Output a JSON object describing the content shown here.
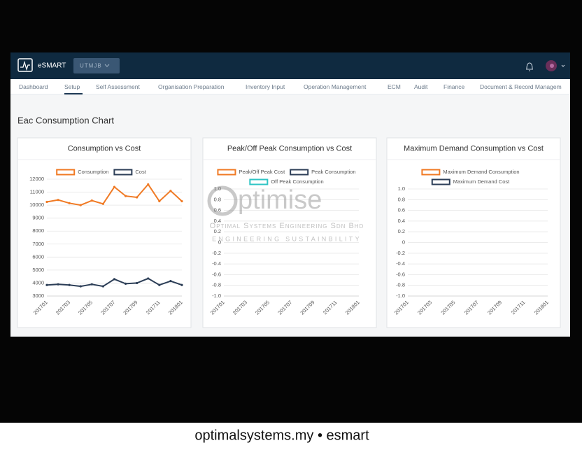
{
  "app": {
    "brand": "eSMART",
    "site": "UTMJB",
    "nav": [
      "Dashboard",
      "Setup",
      "Self Assessment",
      "Organisation Preparation",
      "Inventory Input",
      "Operation Management",
      "ECM",
      "Audit",
      "Finance",
      "Document & Record Managem"
    ],
    "active_nav": "Setup",
    "section_title": "Eac Consumption Chart"
  },
  "watermark": {
    "brand": "ptimise",
    "company": "Optimal Systems Engineering Sdn Bhd",
    "tagline": "ENGINEERING SUSTAINBILITY"
  },
  "caption": "optimalsystems.my • esmart",
  "chart_data": [
    {
      "type": "line",
      "title": "Consumption vs Cost",
      "categories": [
        "201701",
        null,
        "201703",
        null,
        "201705",
        null,
        "201707",
        null,
        "201709",
        null,
        "201711",
        null,
        "201801"
      ],
      "ylim": [
        3000,
        12000
      ],
      "yticks": [
        3000,
        4000,
        5000,
        6000,
        7000,
        8000,
        9000,
        10000,
        11000,
        12000
      ],
      "grid": true,
      "series": [
        {
          "name": "Consumption",
          "color": "#f07a24",
          "values": [
            10250,
            10400,
            10150,
            10000,
            10350,
            10100,
            11400,
            10700,
            10600,
            11600,
            10300,
            11100,
            10300
          ]
        },
        {
          "name": "Cost",
          "color": "#2c3e57",
          "values": [
            3850,
            3900,
            3850,
            3750,
            3900,
            3750,
            4300,
            3950,
            4000,
            4350,
            3850,
            4150,
            3850
          ]
        }
      ]
    },
    {
      "type": "line",
      "title": "Peak/Off Peak Consumption vs Cost",
      "categories": [
        "201701",
        null,
        "201703",
        null,
        "201705",
        null,
        "201707",
        null,
        "201709",
        null,
        "201711",
        null,
        "201801"
      ],
      "ylim": [
        -1,
        1
      ],
      "yticks": [
        {
          "value": -1,
          "label": "-1.0"
        },
        -0.8,
        -0.6,
        -0.4,
        -0.2,
        0,
        0.2,
        0.4,
        0.6,
        0.8,
        {
          "value": 1,
          "label": "1.0"
        }
      ],
      "grid": true,
      "series": [
        {
          "name": "Peak/Off Peak Cost",
          "color": "#f07a24",
          "values": [
            null,
            null,
            null,
            null,
            null,
            null,
            null,
            null,
            null,
            null,
            null,
            null,
            null
          ]
        },
        {
          "name": "Peak Consumption",
          "color": "#2c3e57",
          "values": [
            null,
            null,
            null,
            null,
            null,
            null,
            null,
            null,
            null,
            null,
            null,
            null,
            null
          ]
        },
        {
          "name": "Off Peak Consumption",
          "color": "#2ec4c4",
          "values": [
            null,
            null,
            null,
            null,
            null,
            null,
            null,
            null,
            null,
            null,
            null,
            null,
            null
          ]
        }
      ]
    },
    {
      "type": "line",
      "title": "Maximum Demand Consumption vs Cost",
      "categories": [
        "201701",
        null,
        "201703",
        null,
        "201705",
        null,
        "201707",
        null,
        "201709",
        null,
        "201711",
        null,
        "201801"
      ],
      "ylim": [
        -1,
        1
      ],
      "yticks": [
        {
          "value": -1,
          "label": "-1.0"
        },
        -0.8,
        -0.6,
        -0.4,
        -0.2,
        0,
        0.2,
        0.4,
        0.6,
        0.8,
        {
          "value": 1,
          "label": "1.0"
        }
      ],
      "grid": true,
      "series": [
        {
          "name": "Maximum Demand Consumption",
          "color": "#f07a24",
          "values": [
            null,
            null,
            null,
            null,
            null,
            null,
            null,
            null,
            null,
            null,
            null,
            null,
            null
          ]
        },
        {
          "name": "Maximum Demand Cost",
          "color": "#2c3e57",
          "values": [
            null,
            null,
            null,
            null,
            null,
            null,
            null,
            null,
            null,
            null,
            null,
            null,
            null
          ]
        }
      ]
    }
  ]
}
